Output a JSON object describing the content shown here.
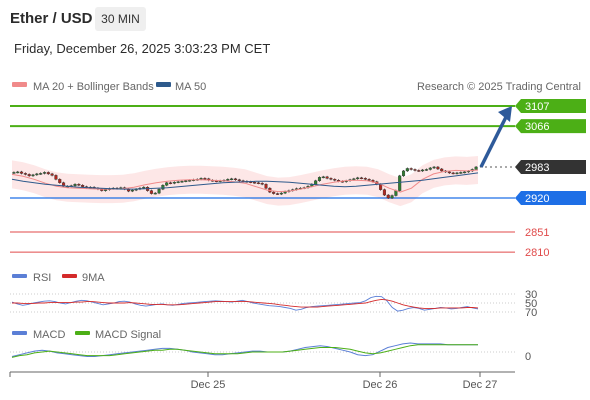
{
  "header": {
    "title": "Ether / USD",
    "interval": "30 MIN",
    "datetime": "Friday, December 26, 2025 3:03:23 PM CET"
  },
  "colors": {
    "resistance": "#4caf16",
    "pivot": "#1e6fe6",
    "support": "#e04a4a",
    "current": "#333333",
    "ma20": "#f08a8a",
    "ma50": "#2e5a8c",
    "band_fill": "#fde3e3",
    "arrow": "#2e5a9a",
    "candle_up": "#2f7d32",
    "candle_down": "#b3261e",
    "rsi": "#5b7fd6",
    "rsi_ma": "#d42a2a",
    "macd": "#5b7fd6",
    "macd_signal": "#4caf16"
  },
  "chart_data": [
    {
      "type": "candlestick",
      "title": "",
      "legend": [
        {
          "name": "MA 20 + Bollinger Bands",
          "color": "#f08a8a"
        },
        {
          "name": "MA 50",
          "color": "#2e5a8c"
        }
      ],
      "source_note": "Research © 2025 Trading Central",
      "x_ticks": [
        "Dec 25",
        "Dec 26",
        "Dec 27"
      ],
      "price_levels": [
        {
          "label": "3107",
          "value": 3107,
          "kind": "resistance"
        },
        {
          "label": "3066",
          "value": 3066,
          "kind": "resistance"
        },
        {
          "label": "2983",
          "value": 2983,
          "kind": "current"
        },
        {
          "label": "2920",
          "value": 2920,
          "kind": "pivot"
        },
        {
          "label": "2851",
          "value": 2851,
          "kind": "support"
        },
        {
          "label": "2810",
          "value": 2810,
          "kind": "support"
        }
      ],
      "close_series": [
        2972,
        2973,
        2970,
        2968,
        2965,
        2967,
        2969,
        2970,
        2972,
        2969,
        2966,
        2958,
        2951,
        2944,
        2944,
        2945,
        2948,
        2946,
        2943,
        2941,
        2942,
        2940,
        2938,
        2935,
        2937,
        2939,
        2940,
        2939,
        2941,
        2938,
        2934,
        2936,
        2938,
        2940,
        2942,
        2935,
        2929,
        2930,
        2938,
        2946,
        2951,
        2950,
        2952,
        2953,
        2954,
        2955,
        2956,
        2957,
        2958,
        2960,
        2959,
        2956,
        2955,
        2954,
        2955,
        2956,
        2958,
        2959,
        2957,
        2955,
        2954,
        2953,
        2952,
        2951,
        2950,
        2948,
        2940,
        2932,
        2929,
        2928,
        2930,
        2933,
        2935,
        2937,
        2939,
        2940,
        2941,
        2944,
        2948,
        2955,
        2962,
        2963,
        2960,
        2958,
        2956,
        2954,
        2953,
        2955,
        2957,
        2959,
        2961,
        2960,
        2958,
        2956,
        2953,
        2948,
        2937,
        2926,
        2920,
        2925,
        2935,
        2965,
        2975,
        2980,
        2978,
        2976,
        2975,
        2977,
        2978,
        2981,
        2983,
        2979,
        2975,
        2973,
        2971,
        2970,
        2971,
        2972,
        2973,
        2975,
        2978,
        2983
      ],
      "forecast_arrow": {
        "from": 2983,
        "to": 3107
      },
      "ma50_series": [
        2958,
        2954,
        2951,
        2948,
        2946,
        2944,
        2942,
        2941,
        2940,
        2939,
        2938,
        2938,
        2939,
        2940,
        2941,
        2943,
        2945,
        2947,
        2949,
        2951,
        2952,
        2953,
        2954,
        2954,
        2953,
        2952,
        2950,
        2948,
        2946,
        2944,
        2943,
        2944,
        2946,
        2948,
        2950,
        2952,
        2954,
        2956,
        2959,
        2962,
        2965,
        2968,
        2971
      ],
      "ma20_series": [
        2968,
        2964,
        2958,
        2950,
        2944,
        2941,
        2940,
        2939,
        2938,
        2938,
        2939,
        2942,
        2947,
        2951,
        2954,
        2956,
        2957,
        2957,
        2956,
        2955,
        2953,
        2950,
        2943,
        2936,
        2933,
        2934,
        2938,
        2943,
        2948,
        2952,
        2955,
        2956,
        2955,
        2950,
        2940,
        2932,
        2940,
        2958,
        2969,
        2974,
        2976,
        2975,
        2977
      ]
    },
    {
      "type": "line",
      "title": "",
      "legend": [
        {
          "name": "RSI",
          "color": "#5b7fd6"
        },
        {
          "name": "9MA",
          "color": "#d42a2a"
        }
      ],
      "y_ticks": [
        {
          "label": "70",
          "value": 70
        },
        {
          "label": "50",
          "value": 50
        },
        {
          "label": "30",
          "value": 30
        }
      ],
      "ylim": [
        20,
        80
      ],
      "series": [
        {
          "values": [
            48,
            52,
            55,
            53,
            50,
            48,
            46,
            45,
            47,
            50,
            52,
            49,
            46,
            44,
            45,
            48,
            51,
            54,
            52,
            50,
            47,
            46,
            48,
            52,
            55,
            57,
            55,
            53,
            52,
            54,
            55,
            53,
            51,
            50,
            49,
            48,
            47,
            46,
            45,
            46,
            47,
            48,
            46,
            44,
            47,
            50,
            52,
            54,
            56,
            57,
            58,
            60,
            62,
            66,
            64,
            60,
            58,
            57,
            56,
            55,
            54,
            53,
            52,
            51,
            50,
            49,
            45,
            38,
            35,
            36,
            45,
            60,
            68,
            66,
            62,
            60,
            62,
            66,
            64,
            62,
            60,
            61,
            63,
            62,
            60,
            58,
            61,
            63
          ]
        },
        {
          "values": [
            50,
            50,
            51,
            51,
            51,
            50,
            50,
            49,
            49,
            49,
            49,
            49,
            48,
            48,
            47,
            47,
            48,
            49,
            50,
            50,
            50,
            50,
            49,
            50,
            51,
            52,
            53,
            53,
            53,
            54,
            54,
            54,
            53,
            52,
            51,
            50,
            49,
            48,
            47,
            47,
            47,
            47,
            47,
            47,
            47,
            48,
            49,
            50,
            51,
            52,
            54,
            55,
            57,
            58,
            59,
            59,
            59,
            59,
            58,
            57,
            56,
            55,
            54,
            53,
            52,
            51,
            50,
            47,
            44,
            42,
            43,
            46,
            50,
            54,
            57,
            59,
            61,
            62,
            62,
            62,
            61,
            61,
            61,
            61,
            61,
            60,
            60,
            61
          ]
        }
      ]
    },
    {
      "type": "line",
      "title": "",
      "legend": [
        {
          "name": "MACD",
          "color": "#5b7fd6"
        },
        {
          "name": "MACD Signal",
          "color": "#4caf16"
        }
      ],
      "y_ticks": [
        {
          "label": "0",
          "value": 0
        }
      ],
      "ylim": [
        -10,
        10
      ],
      "series": [
        {
          "values": [
            -5,
            -3,
            -1,
            1,
            2,
            1,
            -1,
            -2,
            -3,
            -4,
            -5,
            -5,
            -4,
            -3,
            -2,
            -1,
            0,
            1,
            2,
            3,
            4,
            4,
            3,
            2,
            0,
            -1,
            -2,
            -3,
            -3,
            -2,
            -1,
            0,
            1,
            1,
            0,
            0,
            0,
            1,
            3,
            5,
            6,
            7,
            6,
            4,
            2,
            0,
            -3,
            -4,
            -3,
            1,
            5,
            7,
            9,
            10,
            9,
            9,
            9,
            9,
            8,
            8,
            8,
            8,
            8
          ]
        },
        {
          "values": [
            -6,
            -4,
            -3,
            -1,
            0,
            1,
            0,
            -1,
            -2,
            -3,
            -4,
            -4,
            -4,
            -4,
            -3,
            -2,
            -1,
            0,
            1,
            2,
            2,
            3,
            3,
            2,
            1,
            0,
            -1,
            -2,
            -2,
            -2,
            -2,
            -1,
            0,
            0,
            0,
            0,
            0,
            1,
            2,
            3,
            4,
            5,
            5,
            5,
            4,
            3,
            1,
            -1,
            -2,
            -1,
            1,
            3,
            5,
            7,
            8,
            8,
            8,
            8,
            8,
            8,
            8,
            8,
            8
          ]
        }
      ]
    }
  ]
}
